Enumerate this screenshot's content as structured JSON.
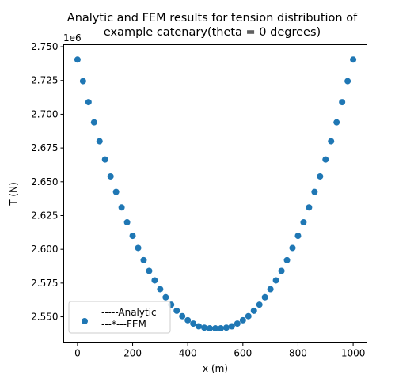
{
  "chart_data": {
    "type": "scatter",
    "title": [
      "Analytic and FEM results for tension distribution of",
      "example catenary(theta = 0 degrees)"
    ],
    "xlabel": "x (m)",
    "ylabel": "T (N)",
    "y_offset_label": "1e6",
    "xlim": [
      -50,
      1050
    ],
    "ylim": [
      2.5307,
      2.7515
    ],
    "xticks": [
      0,
      200,
      400,
      600,
      800,
      1000
    ],
    "xtick_labels": [
      "0",
      "200",
      "400",
      "600",
      "800",
      "1000"
    ],
    "yticks": [
      2.55,
      2.575,
      2.6,
      2.625,
      2.65,
      2.675,
      2.7,
      2.725,
      2.75
    ],
    "ytick_labels": [
      "2.550",
      "2.575",
      "2.600",
      "2.625",
      "2.650",
      "2.675",
      "2.700",
      "2.725",
      "2.750"
    ],
    "grid": false,
    "legend": {
      "placement": "lower-left",
      "entries": [
        "-----Analytic",
        "---*---FEM"
      ]
    },
    "series": [
      {
        "marker": "circle",
        "color": "#1f77b4",
        "x": [
          0,
          20,
          40,
          60,
          80,
          100,
          120,
          140,
          160,
          180,
          200,
          220,
          240,
          260,
          280,
          300,
          320,
          340,
          360,
          380,
          400,
          420,
          440,
          460,
          480,
          500,
          520,
          540,
          560,
          580,
          600,
          620,
          640,
          660,
          680,
          700,
          720,
          740,
          760,
          780,
          800,
          820,
          840,
          860,
          880,
          900,
          920,
          940,
          960,
          980,
          1000
        ],
        "y": [
          2.7405,
          2.7245,
          2.709,
          2.694,
          2.68,
          2.6665,
          2.654,
          2.6425,
          2.631,
          2.62,
          2.61,
          2.601,
          2.592,
          2.584,
          2.577,
          2.5705,
          2.5645,
          2.559,
          2.5545,
          2.5505,
          2.5475,
          2.545,
          2.543,
          2.542,
          2.5415,
          2.5415,
          2.5415,
          2.542,
          2.543,
          2.545,
          2.5475,
          2.5505,
          2.5545,
          2.559,
          2.5645,
          2.5705,
          2.577,
          2.584,
          2.592,
          2.601,
          2.61,
          2.62,
          2.631,
          2.6425,
          2.654,
          2.6665,
          2.68,
          2.694,
          2.709,
          2.7245,
          2.7405
        ]
      }
    ]
  }
}
